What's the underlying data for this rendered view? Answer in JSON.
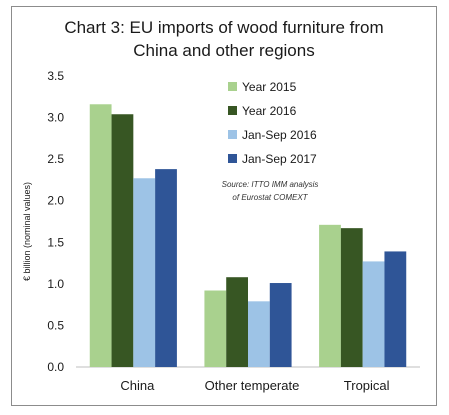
{
  "chart_data": {
    "type": "bar",
    "title_lines": [
      "Chart 3: EU imports of wood furniture from",
      "China and other regions"
    ],
    "ylabel": "€ billion (nominal values)",
    "xlabel": "",
    "categories": [
      "China",
      "Other temperate",
      "Tropical"
    ],
    "series": [
      {
        "name": "Year 2015",
        "color": "#a9d18e",
        "values": [
          3.16,
          0.92,
          1.71
        ]
      },
      {
        "name": "Year 2016",
        "color": "#375623",
        "values": [
          3.04,
          1.08,
          1.67
        ]
      },
      {
        "name": "Jan-Sep 2016",
        "color": "#9dc3e6",
        "values": [
          2.27,
          0.79,
          1.27
        ]
      },
      {
        "name": "Jan-Sep 2017",
        "color": "#2f5597",
        "values": [
          2.38,
          1.01,
          1.39
        ]
      }
    ],
    "ylim": [
      0,
      3.5
    ],
    "yticks": [
      "0.0",
      "0.5",
      "1.0",
      "1.5",
      "2.0",
      "2.5",
      "3.0",
      "3.5"
    ],
    "grid": false,
    "legend_position": "top-right",
    "source_lines": [
      "Source: ITTO IMM analysis",
      "of Eurostat COMEXT"
    ]
  }
}
